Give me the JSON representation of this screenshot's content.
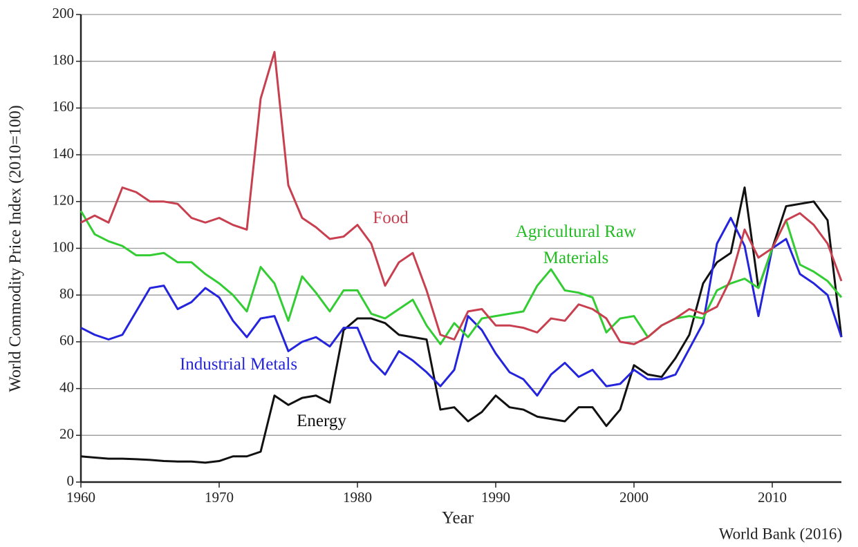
{
  "chart_data": {
    "type": "line",
    "x_label": "Year",
    "y_label": "World Commodity Price Index (2010=100)",
    "source": "World Bank (2016)",
    "x": [
      1960,
      1961,
      1962,
      1963,
      1964,
      1965,
      1966,
      1967,
      1968,
      1969,
      1970,
      1971,
      1972,
      1973,
      1974,
      1975,
      1976,
      1977,
      1978,
      1979,
      1980,
      1981,
      1982,
      1983,
      1984,
      1985,
      1986,
      1987,
      1988,
      1989,
      1990,
      1991,
      1992,
      1993,
      1994,
      1995,
      1996,
      1997,
      1998,
      1999,
      2000,
      2001,
      2002,
      2003,
      2004,
      2005,
      2006,
      2007,
      2008,
      2009,
      2010,
      2011,
      2012,
      2013,
      2014,
      2015
    ],
    "xlim": [
      1960,
      2015
    ],
    "xticks": [
      1960,
      1970,
      1980,
      1990,
      2000,
      2010
    ],
    "ylim": [
      0,
      200
    ],
    "yticks": [
      0,
      20,
      40,
      60,
      80,
      100,
      120,
      140,
      160,
      180,
      200
    ],
    "grid": true,
    "series": [
      {
        "name": "Energy",
        "color": "#111111",
        "values": [
          11,
          10.5,
          10,
          10,
          9.8,
          9.5,
          9,
          8.8,
          8.8,
          8.3,
          9,
          11,
          11,
          13,
          37,
          33,
          36,
          37,
          34,
          65,
          70,
          70,
          68,
          63,
          62,
          61,
          31,
          32,
          26,
          30,
          37,
          32,
          31,
          28,
          27,
          26,
          32,
          32,
          24,
          31,
          50,
          46,
          45,
          53,
          63,
          85,
          94,
          98,
          126,
          83,
          100,
          118,
          119,
          120,
          112,
          62
        ]
      },
      {
        "name": "Industrial Metals",
        "color": "#2424dd",
        "values": [
          66,
          63,
          61,
          63,
          73,
          83,
          84,
          74,
          77,
          83,
          79,
          69,
          62,
          70,
          71,
          56,
          60,
          62,
          58,
          66,
          66,
          52,
          46,
          56,
          52,
          47,
          41,
          48,
          71,
          65,
          55,
          47,
          44,
          37,
          46,
          51,
          45,
          48,
          41,
          42,
          48,
          44,
          44,
          46,
          57,
          68,
          102,
          113,
          101,
          71,
          100,
          104,
          89,
          85,
          80,
          62
        ]
      },
      {
        "name": "Agricultural Raw Materials",
        "color": "#33cc33",
        "values": [
          116,
          106,
          103,
          101,
          97,
          97,
          98,
          94,
          94,
          89,
          85,
          80,
          73,
          92,
          85,
          69,
          88,
          81,
          73,
          82,
          82,
          72,
          70,
          74,
          78,
          67,
          59,
          68,
          62,
          70,
          71,
          72,
          73,
          84,
          91,
          82,
          81,
          79,
          64,
          70,
          71,
          62,
          67,
          70,
          71,
          70,
          82,
          85,
          87,
          83,
          100,
          112,
          93,
          90,
          86,
          79
        ]
      },
      {
        "name": "Food",
        "color": "#c8404f",
        "values": [
          111,
          114,
          111,
          126,
          124,
          120,
          120,
          119,
          113,
          111,
          113,
          110,
          108,
          164,
          184,
          127,
          113,
          109,
          104,
          105,
          110,
          102,
          84,
          94,
          98,
          82,
          63,
          61,
          73,
          74,
          67,
          67,
          66,
          64,
          70,
          69,
          76,
          74,
          70,
          60,
          59,
          62,
          67,
          70,
          74,
          72,
          75,
          87,
          108,
          96,
          100,
          112,
          115,
          110,
          102,
          86
        ]
      }
    ]
  }
}
